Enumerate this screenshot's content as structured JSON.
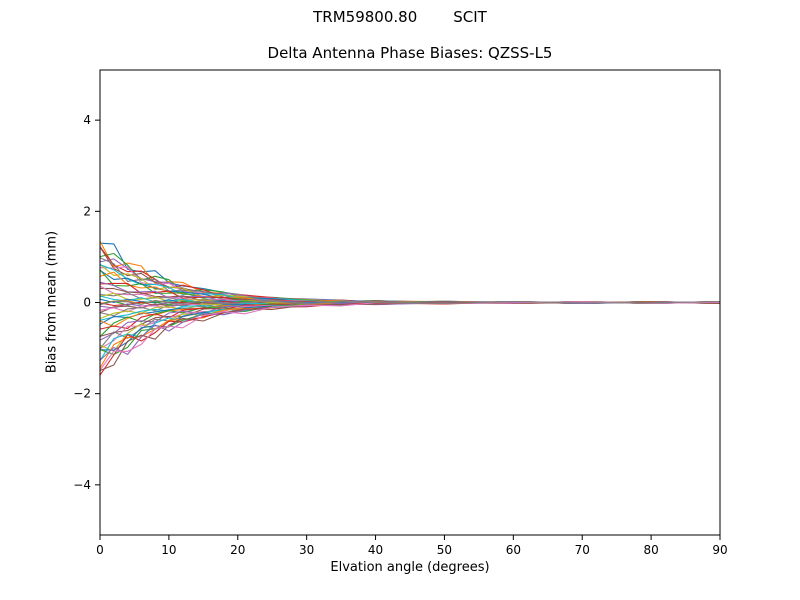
{
  "figure": {
    "suptitle_left": "TRM59800.80",
    "suptitle_right": "SCIT",
    "background_color": "#ffffff"
  },
  "chart_data": {
    "type": "line",
    "title": "Delta Antenna Phase Biases: QZSS-L5",
    "xlabel": "Elvation angle (degrees)",
    "ylabel": "Bias from mean (mm)",
    "xlim": [
      0,
      90
    ],
    "ylim": [
      -5.1,
      5.1
    ],
    "xticks": [
      0,
      10,
      20,
      30,
      40,
      50,
      60,
      70,
      80,
      90
    ],
    "xticklabels": [
      "0",
      "10",
      "20",
      "30",
      "40",
      "50",
      "60",
      "70",
      "80",
      "90"
    ],
    "yticks": [
      -4,
      -2,
      0,
      2,
      4
    ],
    "yticklabels": [
      "−4",
      "−2",
      "0",
      "2",
      "4"
    ],
    "grid": false,
    "legend": "none",
    "axes_color": "#000000",
    "x": [
      0,
      2,
      4,
      6,
      8,
      10,
      12,
      15,
      18,
      21,
      25,
      30,
      35,
      40,
      50,
      60,
      70,
      80,
      90
    ],
    "decay_profile": [
      1.0,
      0.82,
      0.67,
      0.55,
      0.45,
      0.37,
      0.3,
      0.22,
      0.165,
      0.122,
      0.082,
      0.05,
      0.03,
      0.018,
      0.007,
      0.002,
      0.001,
      0.0005,
      0.0003
    ],
    "residual_profile": [
      1.0,
      1.0,
      0.95,
      0.9,
      0.9,
      0.85,
      0.8,
      0.75,
      0.7,
      0.65,
      0.6,
      0.55,
      0.5,
      0.5,
      0.45,
      0.4,
      0.4,
      0.4,
      0.4
    ],
    "residual_amplitude": 0.05,
    "wiggle_amplitude": 0.18,
    "series_starts_mm": [
      1.3,
      1.22,
      1.15,
      1.1,
      1.05,
      1.0,
      0.95,
      0.9,
      0.85,
      0.8,
      0.72,
      0.65,
      0.58,
      0.5,
      0.42,
      0.35,
      0.28,
      0.22,
      0.16,
      0.1,
      0.05,
      0.02,
      -0.02,
      -0.05,
      -0.1,
      -0.15,
      -0.2,
      -0.26,
      -0.32,
      -0.38,
      -0.45,
      -0.52,
      -0.6,
      -0.68,
      -0.76,
      -0.84,
      -0.92,
      -1.0,
      -1.06,
      -1.12,
      -1.18,
      -1.24,
      -1.3,
      -1.35,
      -1.4,
      -1.45,
      -1.5,
      0.0
    ],
    "palette": [
      "#1f77b4",
      "#ff7f0e",
      "#2ca02c",
      "#d62728",
      "#9467bd",
      "#8c564b",
      "#e377c2",
      "#7f7f7f",
      "#bcbd22",
      "#17becf"
    ]
  }
}
